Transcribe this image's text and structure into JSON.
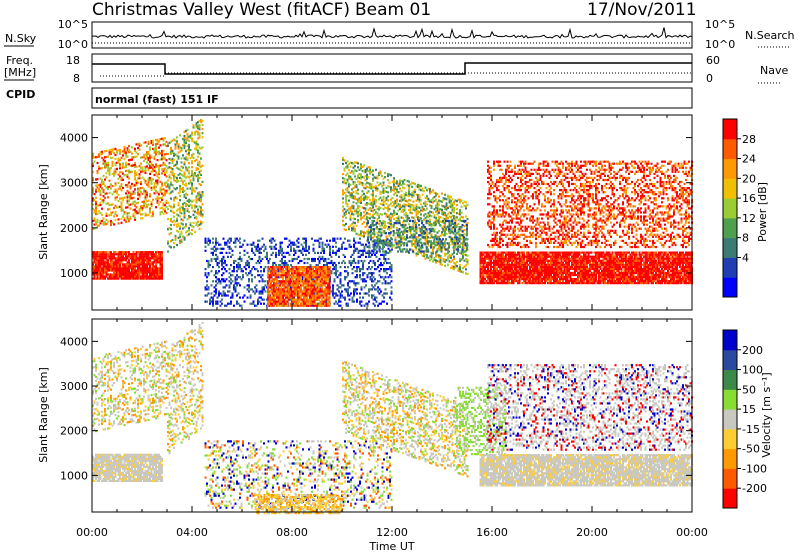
{
  "header": {
    "title": "Christmas Valley West (fitACF)",
    "beam": "Beam 01",
    "date": "17/Nov/2011"
  },
  "top_panels": {
    "nsky_label": "N.Sky",
    "nsky_ticks": [
      "10^5",
      "10^0"
    ],
    "nsearch_label": "N.Search",
    "nsearch_ticks": [
      "10^5",
      "10^0"
    ],
    "freq_label_1": "Freq.",
    "freq_label_2": "[MHz]",
    "freq_ticks": [
      "18",
      "8"
    ],
    "nave_label": "Nave",
    "nave_ticks": [
      "60",
      "0"
    ],
    "cpid_label": "CPID",
    "cpid_value": "normal (fast) 151 IF"
  },
  "colors": {
    "power": [
      "#0000ff",
      "#1f3fb3",
      "#3c7a74",
      "#4ea04e",
      "#9acc33",
      "#f0c000",
      "#ff9900",
      "#ff5a00",
      "#ff0000"
    ],
    "velocity": [
      "#ff0000",
      "#ff5a00",
      "#ff9900",
      "#ffcc33",
      "#c8c8c0",
      "#88dd33",
      "#3c8a4a",
      "#2a4aa0",
      "#0000cc"
    ]
  },
  "chart_data": [
    {
      "type": "heatmap",
      "name": "power",
      "ylabel": "Slant Range [km]",
      "yticks": [
        "4000",
        "3000",
        "2000",
        "1000"
      ],
      "xticks": [
        "00:00",
        "04:00",
        "08:00",
        "12:00",
        "16:00",
        "20:00",
        "00:00"
      ],
      "colorbar_label": "Power [dB]",
      "colorbar_ticks": [
        "28",
        "24",
        "20",
        "16",
        "12",
        "8",
        "4"
      ],
      "ylim": [
        180,
        4500
      ],
      "xlim_hours": [
        0,
        24
      ]
    },
    {
      "type": "heatmap",
      "name": "velocity",
      "ylabel": "Slant Range [km]",
      "yticks": [
        "4000",
        "3000",
        "2000",
        "1000"
      ],
      "xticks": [
        "00:00",
        "04:00",
        "08:00",
        "12:00",
        "16:00",
        "20:00",
        "00:00"
      ],
      "xlabel": "Time UT",
      "colorbar_label": "Velocity [m s⁻¹]",
      "colorbar_ticks": [
        "200",
        "100",
        "50",
        "15",
        "-15",
        "-50",
        "-100",
        "-200"
      ],
      "ylim": [
        180,
        4500
      ],
      "xlim_hours": [
        0,
        24
      ]
    }
  ]
}
